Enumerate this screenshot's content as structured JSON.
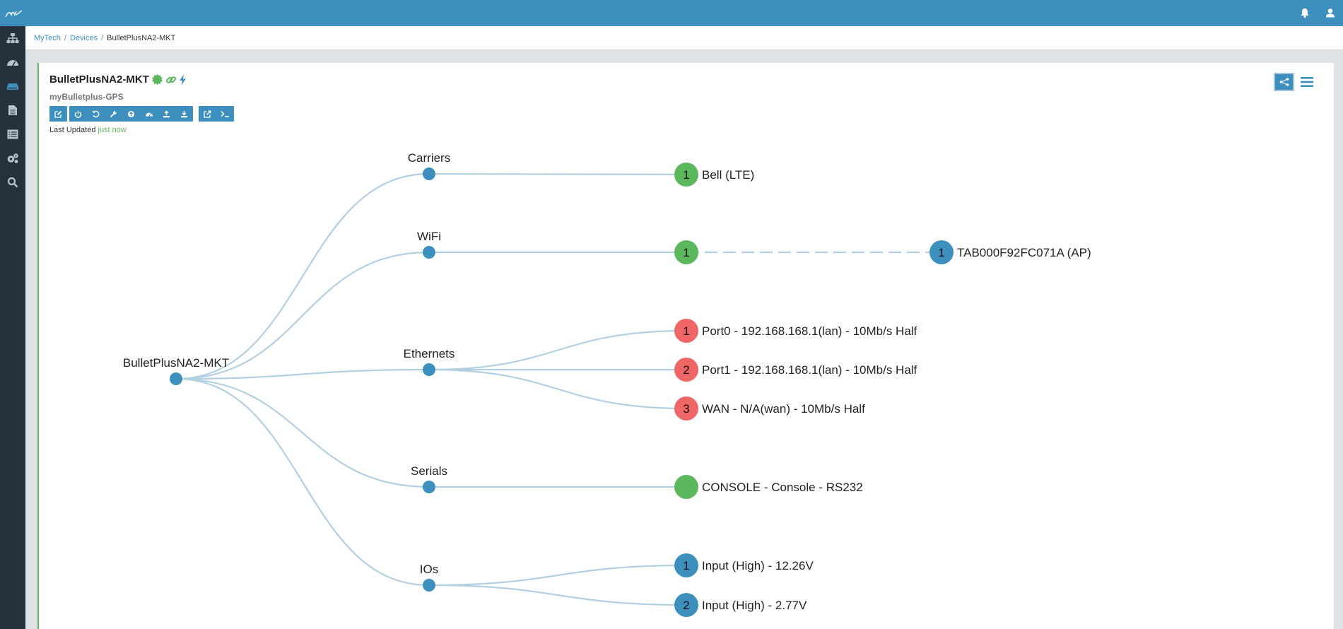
{
  "app": {
    "logo_icon": "brand-logo-icon",
    "notifications_icon": "bell-icon",
    "user_icon": "user-icon"
  },
  "sidebar": {
    "items": [
      {
        "icon": "sitemap-icon"
      },
      {
        "icon": "dashboard-icon"
      },
      {
        "icon": "devices-icon",
        "active": true
      },
      {
        "icon": "document-icon"
      },
      {
        "icon": "list-icon"
      },
      {
        "icon": "settings-gears-icon"
      },
      {
        "icon": "search-icon"
      }
    ]
  },
  "breadcrumb": {
    "items": [
      "MyTech",
      "Devices",
      "BulletPlusNA2-MKT"
    ],
    "separator": "/"
  },
  "device": {
    "name": "BulletPlusNA2-MKT",
    "subtitle": "myBulletplus-GPS",
    "status_icons": [
      "status-online-icon",
      "link-icon",
      "power-icon"
    ],
    "last_updated_label": "Last Updated",
    "last_updated_value": "just now"
  },
  "toolbar": {
    "groups": [
      [
        "edit-icon"
      ],
      [
        "power-icon",
        "reboot-icon",
        "wrench-icon",
        "upgrade-icon",
        "dashboard-icon",
        "upload-icon",
        "download-icon"
      ],
      [
        "external-link-icon",
        "terminal-icon"
      ]
    ]
  },
  "view_toggle": {
    "options": [
      "tree-view-icon",
      "list-view-icon"
    ],
    "active": 0
  },
  "colors": {
    "brand": "#3d8fbe",
    "sidebar": "#26323b",
    "link": "#b3d0e2",
    "green": "#5cb85c",
    "red": "#ee6666",
    "blue": "#3d8fbe"
  },
  "tree": {
    "root": {
      "label": "BulletPlusNA2-MKT"
    },
    "categories": [
      {
        "label": "Carriers",
        "children": [
          {
            "badge": "1",
            "color": "green",
            "label": "Bell (LTE)"
          }
        ]
      },
      {
        "label": "WiFi",
        "children": [
          {
            "badge": "1",
            "color": "green",
            "label": "",
            "peer": {
              "badge": "1",
              "color": "blue",
              "label": "TAB000F92FC071A (AP)"
            }
          }
        ]
      },
      {
        "label": "Ethernets",
        "children": [
          {
            "badge": "1",
            "color": "red",
            "label": "Port0 - 192.168.168.1(lan) - 10Mb/s Half"
          },
          {
            "badge": "2",
            "color": "red",
            "label": "Port1 - 192.168.168.1(lan) - 10Mb/s Half"
          },
          {
            "badge": "3",
            "color": "red",
            "label": "WAN - N/A(wan) - 10Mb/s Half"
          }
        ]
      },
      {
        "label": "Serials",
        "children": [
          {
            "badge": "",
            "color": "green",
            "label": "CONSOLE - Console - RS232"
          }
        ]
      },
      {
        "label": "IOs",
        "children": [
          {
            "badge": "1",
            "color": "blue",
            "label": "Input (High) - 12.26V"
          },
          {
            "badge": "2",
            "color": "blue",
            "label": "Input (High) - 2.77V"
          }
        ]
      }
    ]
  }
}
